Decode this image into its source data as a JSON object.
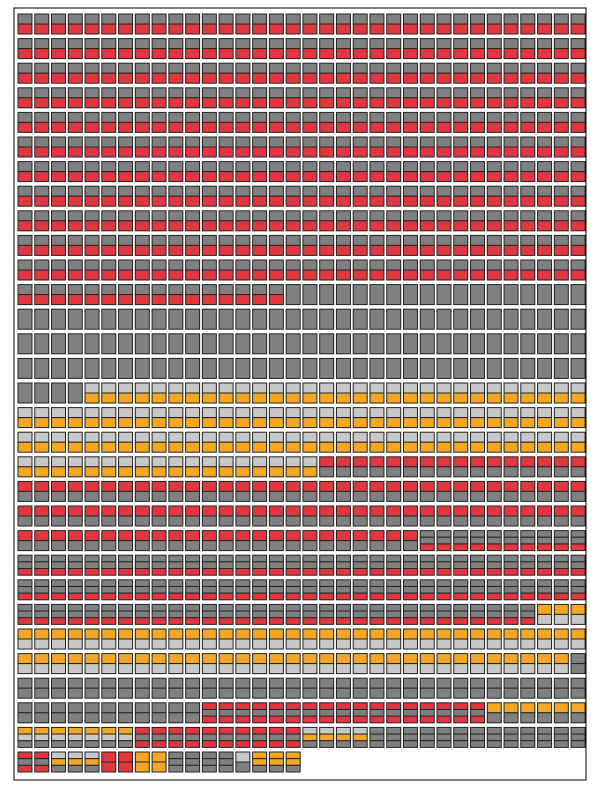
{
  "chart_data": {
    "type": "waffle",
    "series": [
      {
        "colors": [
          "#808080",
          "#e0383e"
        ],
        "value": 390
      },
      {
        "colors": [
          "#808080"
        ],
        "value": 124
      },
      {
        "colors": [
          "#c8c8c8",
          "#f5a623"
        ],
        "value": 116
      },
      {
        "colors": [
          "#e0383e",
          "#808080"
        ],
        "value": 108
      },
      {
        "colors": [
          "#808080",
          "#808080",
          "#e0383e"
        ],
        "value": 109
      },
      {
        "colors": [
          "#f5a623",
          "#c8c8c8"
        ],
        "value": 70
      },
      {
        "colors": [
          "#808080",
          "#808080"
        ],
        "value": 46
      },
      {
        "colors": [
          "#e0383e",
          "#808080",
          "#e0383e"
        ],
        "value": 17
      },
      {
        "colors": [
          "#f5a623",
          "#808080"
        ],
        "value": 6
      },
      {
        "colors": [
          "#f5a623",
          "#c8c8c8",
          "#808080"
        ],
        "value": 7
      },
      {
        "colors": [
          "#e0383e",
          "#808080",
          "#e0383e"
        ],
        "value": 10
      },
      {
        "colors": [
          "#c8c8c8",
          "#f5a623",
          "#808080"
        ],
        "value": 4
      },
      {
        "colors": [
          "#808080",
          "#808080",
          "#808080"
        ],
        "value": 13
      },
      {
        "colors": [
          "#e0383e",
          "#808080",
          "#e0383e"
        ],
        "value": 2
      },
      {
        "colors": [
          "#c8c8c8",
          "#f5a623",
          "#808080"
        ],
        "value": 3
      },
      {
        "colors": [
          "#e0383e",
          "#e0383e"
        ],
        "value": 2
      },
      {
        "colors": [
          "#f5a623",
          "#f5a623"
        ],
        "value": 2
      },
      {
        "colors": [
          "#808080",
          "#808080",
          "#808080"
        ],
        "value": 4
      },
      {
        "colors": [
          "#c8c8c8",
          "#808080"
        ],
        "value": 1
      },
      {
        "colors": [
          "#f5a623",
          "#f5a623",
          "#808080"
        ],
        "value": 3
      }
    ]
  }
}
